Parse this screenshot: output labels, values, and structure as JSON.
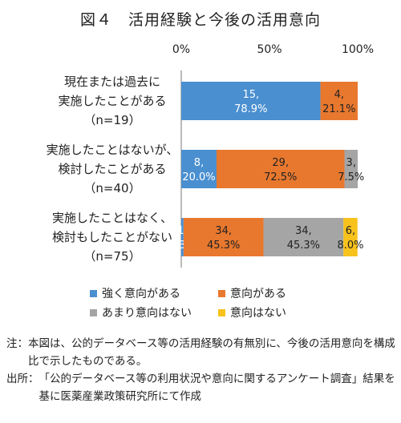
{
  "title": "図４　活用経験と今後の活用意向",
  "chart_data": {
    "type": "bar",
    "orientation": "horizontal",
    "stacked": true,
    "percent_stacked": true,
    "x_ticks": [
      "0%",
      "50%",
      "100%"
    ],
    "xlim": [
      0,
      100
    ],
    "grid": false,
    "legend_position": "bottom",
    "categories": [
      {
        "label_lines": [
          "現在または過去に",
          "実施したことがある",
          "（n=19）"
        ],
        "n": 19
      },
      {
        "label_lines": [
          "実施したことはないが、",
          "検討したことがある",
          "（n=40）"
        ],
        "n": 40
      },
      {
        "label_lines": [
          "実施したことはなく、",
          "検討もしたことがない",
          "（n=75）"
        ],
        "n": 75
      }
    ],
    "series": [
      {
        "name": "強く意向がある",
        "color": "#4a8fd0",
        "counts": [
          15,
          8,
          1
        ],
        "values": [
          78.9,
          20.0,
          1.3
        ],
        "labels": [
          [
            "15,",
            "78.9%"
          ],
          [
            "8,",
            "20.0%"
          ],
          [
            "1,",
            "1.3%"
          ]
        ]
      },
      {
        "name": "意向がある",
        "color": "#e8782e",
        "counts": [
          4,
          29,
          34
        ],
        "values": [
          21.1,
          72.5,
          45.3
        ],
        "labels": [
          [
            "4,",
            "21.1%"
          ],
          [
            "29,",
            "72.5%"
          ],
          [
            "34,",
            "45.3%"
          ]
        ]
      },
      {
        "name": "あまり意向はない",
        "color": "#a5a5a5",
        "counts": [
          0,
          3,
          34
        ],
        "values": [
          0,
          7.5,
          45.3
        ],
        "labels": [
          null,
          [
            "3,",
            "7.5%"
          ],
          [
            "34,",
            "45.3%"
          ]
        ]
      },
      {
        "name": "意向はない",
        "color": "#f7c21b",
        "counts": [
          0,
          0,
          6
        ],
        "values": [
          0,
          0,
          8.0
        ],
        "labels": [
          null,
          null,
          [
            "6,",
            "8.0%"
          ]
        ]
      }
    ]
  },
  "notes": [
    {
      "head": "注：",
      "text": "本図は、公的データベース等の活用経験の有無別に、今後の活用意向を構成比で示したものである。"
    },
    {
      "head": "出所：",
      "text": "「公的データベース等の利用状況や意向に関するアンケート調査」結果を基に医薬産業政策研究所にて作成"
    }
  ]
}
